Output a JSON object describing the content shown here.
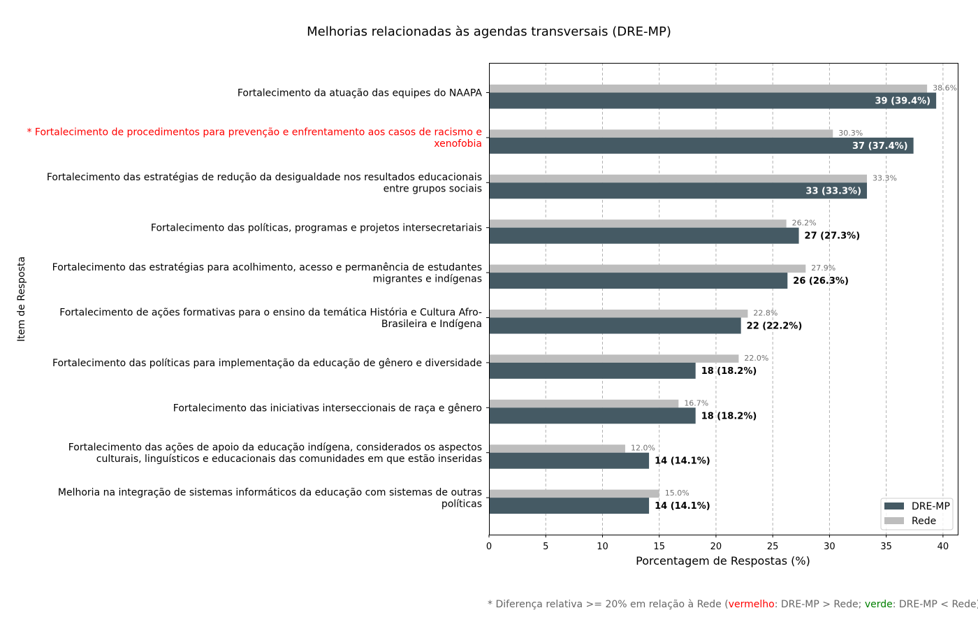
{
  "chart_data": {
    "type": "bar",
    "orientation": "horizontal",
    "title": "Melhorias relacionadas às agendas transversais (DRE-MP)",
    "xlabel": "Porcentagem de Respostas (%)",
    "ylabel": "Item de Resposta",
    "xlim": [
      0,
      41.3
    ],
    "xticks": [
      0,
      5,
      10,
      15,
      20,
      25,
      30,
      35,
      40
    ],
    "grid": "x-dashed",
    "legend_position": "lower-right",
    "categories": [
      {
        "label": "Fortalecimento da atuação das equipes do NAAPA",
        "highlight": ""
      },
      {
        "label": "* Fortalecimento de procedimentos para prevenção e enfrentamento aos casos de racismo e\nxenofobia",
        "highlight": "red"
      },
      {
        "label": "Fortalecimento das estratégias de redução da desigualdade nos resultados educacionais\nentre grupos sociais",
        "highlight": ""
      },
      {
        "label": "Fortalecimento das políticas, programas e projetos intersecretariais",
        "highlight": ""
      },
      {
        "label": "Fortalecimento das estratégias para acolhimento, acesso e permanência de estudantes\nmigrantes e indígenas",
        "highlight": ""
      },
      {
        "label": "Fortalecimento de ações formativas para o ensino da temática História e Cultura Afro-\nBrasileira e Indígena",
        "highlight": ""
      },
      {
        "label": "Fortalecimento das políticas para implementação da educação de gênero e diversidade",
        "highlight": ""
      },
      {
        "label": "Fortalecimento das iniciativas interseccionais de raça e gênero",
        "highlight": ""
      },
      {
        "label": "Fortalecimento das ações de apoio da educação indígena, considerados os aspectos\nculturais, linguísticos e educacionais das comunidades em que estão inseridas",
        "highlight": ""
      },
      {
        "label": "Melhoria na integração de sistemas informáticos da educação com sistemas de outras\npolíticas",
        "highlight": ""
      }
    ],
    "series": [
      {
        "name": "DRE-MP",
        "color": "#455a64",
        "values": [
          39.4,
          37.4,
          33.3,
          27.3,
          26.3,
          22.2,
          18.2,
          18.2,
          14.1,
          14.1
        ],
        "labels": [
          "39 (39.4%)",
          "37 (37.4%)",
          "33 (33.3%)",
          "27 (27.3%)",
          "26 (26.3%)",
          "22 (22.2%)",
          "18 (18.2%)",
          "18 (18.2%)",
          "14 (14.1%)",
          "14 (14.1%)"
        ]
      },
      {
        "name": "Rede",
        "color": "#bdbdbd",
        "values": [
          38.6,
          30.3,
          33.3,
          26.2,
          27.9,
          22.8,
          22.0,
          16.7,
          12.0,
          15.0
        ],
        "labels": [
          "38.6%",
          "30.3%",
          "33.3%",
          "26.2%",
          "27.9%",
          "22.8%",
          "22.0%",
          "16.7%",
          "12.0%",
          "15.0%"
        ]
      }
    ],
    "colors": {
      "highlight_red": "#ff0000",
      "highlight_green": "#008000",
      "footnote": "#666666"
    }
  },
  "footnote": {
    "part1": "* Diferença relativa >= 20% em relação à Rede (",
    "red_word": "vermelho",
    "part2": ": DRE-MP > Rede; ",
    "green_word": "verde",
    "part3": ": DRE-MP < Rede)"
  }
}
